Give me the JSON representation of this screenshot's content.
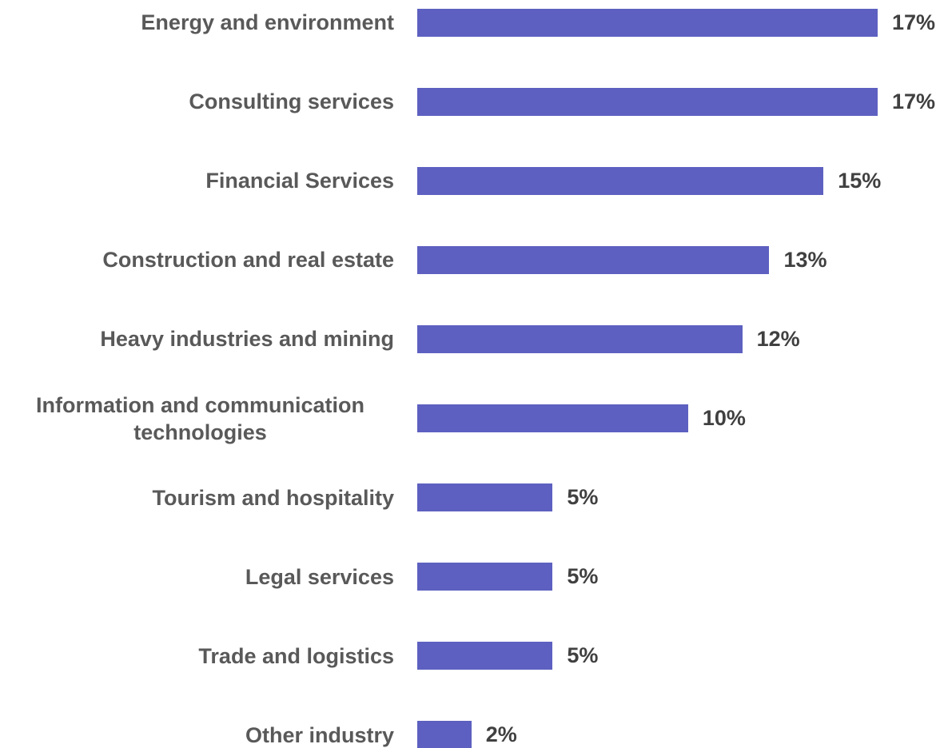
{
  "chart_data": {
    "type": "hbar",
    "categories": [
      "Energy and environment",
      "Consulting services",
      "Financial Services",
      "Construction and real estate",
      "Heavy industries and mining",
      "Information and communication technologies",
      "Tourism and hospitality",
      "Legal services",
      "Trade and logistics",
      "Other industry"
    ],
    "values": [
      17,
      17,
      15,
      13,
      12,
      10,
      5,
      5,
      5,
      2
    ],
    "value_labels": [
      "17%",
      "17%",
      "15%",
      "13%",
      "12%",
      "10%",
      "5%",
      "5%",
      "5%",
      "2%"
    ],
    "color": "#5d60c0"
  }
}
